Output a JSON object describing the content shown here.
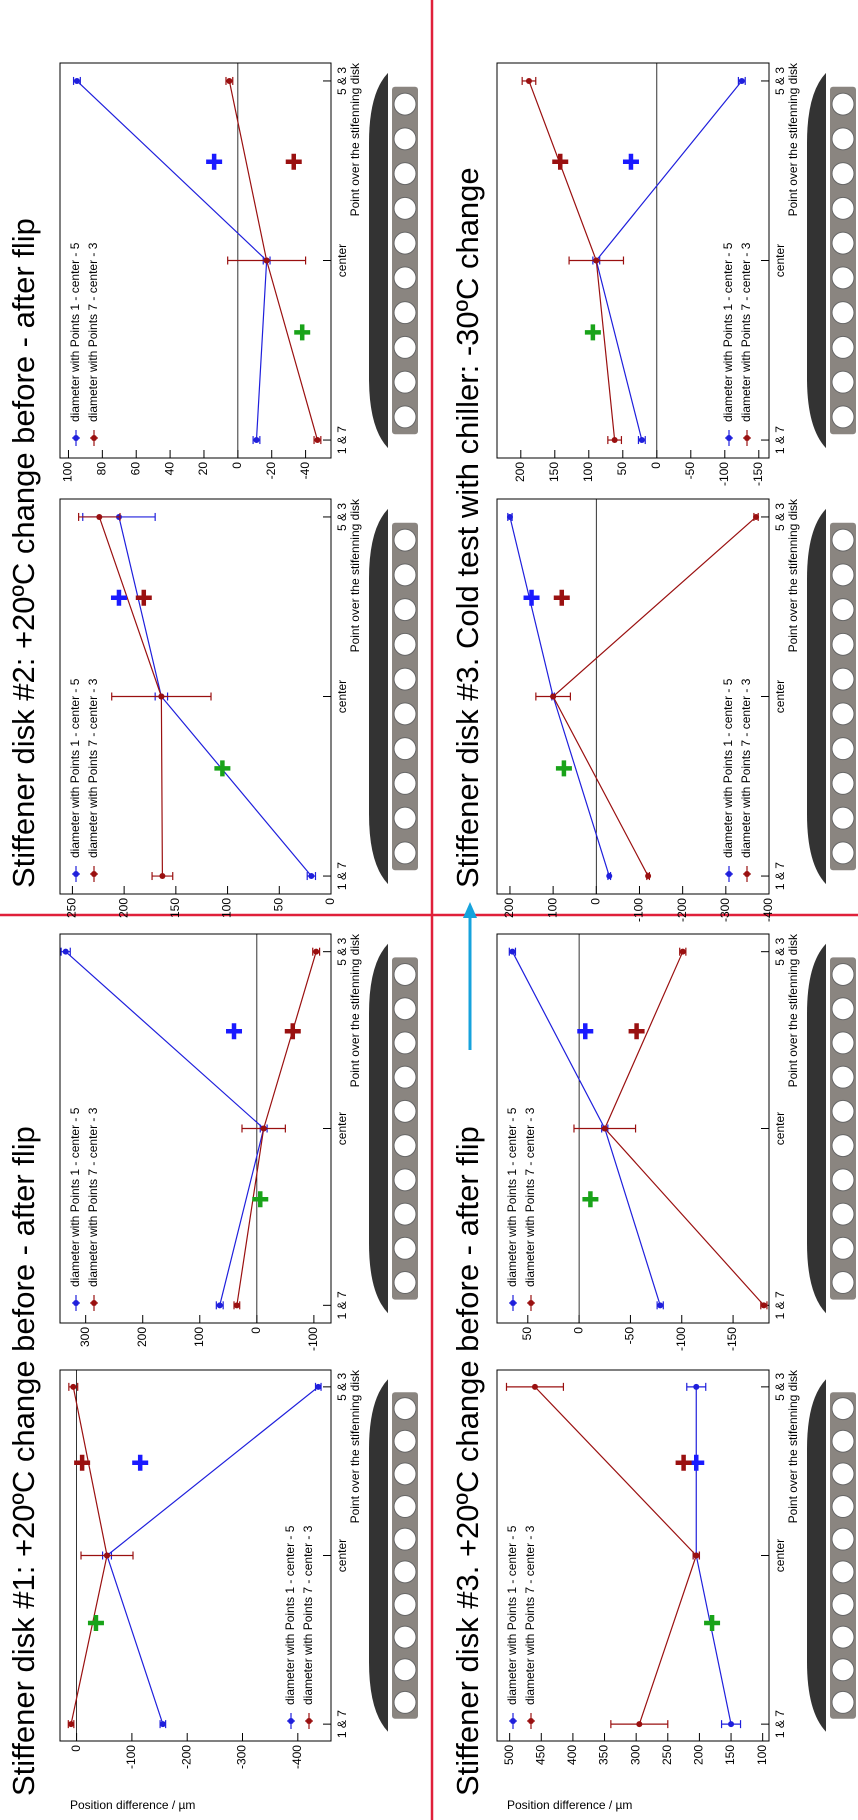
{
  "slide": {
    "sections": [
      {
        "title": "Stiffener disk #1: +20ºC change before - after flip",
        "color": "#e3173e"
      },
      {
        "title": "Stiffener disk #2: +20ºC change before - after flip",
        "color": "#e3173e"
      },
      {
        "title": "Stiffener disk #3. +20ºC change before - after flip",
        "color": "#e3173e"
      },
      {
        "title": "Stiffener disk #3. Cold test with chiller: -30ºC change",
        "color": "#16a3dd"
      }
    ]
  },
  "chart_data": [
    {
      "type": "line",
      "ylabel": "Position difference / µm",
      "xlabel": "Point over the stifenning disk",
      "x": [
        0,
        1,
        2
      ],
      "xlim": [
        -0.1,
        2.1
      ],
      "xticks": [
        {
          "value": 0,
          "label": "1 & 7"
        },
        {
          "value": 1,
          "label": "center"
        },
        {
          "value": 2,
          "label": "5 & 3"
        }
      ],
      "ylim": [
        -460,
        30
      ],
      "yticks": [
        -400,
        -300,
        -200,
        -100,
        0
      ],
      "legend": "lower left",
      "series": [
        {
          "name": "diameter with Points 1 - center - 5",
          "color": "#1f1fdc",
          "values": [
            -156,
            -55,
            -437
          ],
          "errors": [
            5,
            8,
            5
          ]
        },
        {
          "name": "diameter with Points 7 - center - 3",
          "color": "#9a1010",
          "values": [
            10,
            -55,
            6
          ],
          "errors": [
            5,
            47,
            8
          ]
        }
      ],
      "markers": [
        {
          "x": 0.6,
          "y": -35,
          "color": "#19a319"
        },
        {
          "x": 1.55,
          "y": -10,
          "color": "#9a1010"
        },
        {
          "x": 1.55,
          "y": -115,
          "color": "#1a1aff"
        }
      ]
    },
    {
      "type": "line",
      "xlabel": "Point over the stifenning disk",
      "x": [
        0,
        1,
        2
      ],
      "xlim": [
        -0.1,
        2.1
      ],
      "xticks": [
        {
          "value": 0,
          "label": "1 & 7"
        },
        {
          "value": 1,
          "label": "center"
        },
        {
          "value": 2,
          "label": "5 & 3"
        }
      ],
      "ylim": [
        -130,
        345
      ],
      "yticks": [
        -100,
        0,
        100,
        200,
        300
      ],
      "legend": "upper left",
      "series": [
        {
          "name": "diameter with Points 1 - center - 5",
          "color": "#1f1fdc",
          "values": [
            65,
            -12,
            335
          ],
          "errors": [
            6,
            6,
            8
          ]
        },
        {
          "name": "diameter with Points 7 - center - 3",
          "color": "#9a1010",
          "values": [
            35,
            -12,
            -104
          ],
          "errors": [
            5,
            38,
            6
          ]
        }
      ],
      "markers": [
        {
          "x": 0.6,
          "y": -6,
          "color": "#19a319"
        },
        {
          "x": 1.55,
          "y": 40,
          "color": "#1a1aff"
        },
        {
          "x": 1.55,
          "y": -63,
          "color": "#9a1010"
        }
      ]
    },
    {
      "type": "line",
      "xlabel": "Point over the stifenning disk",
      "x": [
        0,
        1,
        2
      ],
      "xlim": [
        -0.1,
        2.1
      ],
      "xticks": [
        {
          "value": 0,
          "label": "1 & 7"
        },
        {
          "value": 1,
          "label": "center"
        },
        {
          "value": 2,
          "label": "5 & 3"
        }
      ],
      "ylim": [
        0,
        262
      ],
      "yticks": [
        0,
        50,
        100,
        150,
        200,
        250
      ],
      "legend": "upper left",
      "series": [
        {
          "name": "diameter with Points 1 - center - 5",
          "color": "#1f1fdc",
          "values": [
            19,
            164,
            205
          ],
          "errors": [
            4,
            6,
            35
          ]
        },
        {
          "name": "diameter with Points 7 - center - 3",
          "color": "#9a1010",
          "values": [
            163,
            164,
            224
          ],
          "errors": [
            10,
            48,
            20
          ]
        }
      ],
      "markers": [
        {
          "x": 0.6,
          "y": 105,
          "color": "#19a319"
        },
        {
          "x": 1.55,
          "y": 205,
          "color": "#1a1aff"
        },
        {
          "x": 1.55,
          "y": 181,
          "color": "#9a1010"
        }
      ]
    },
    {
      "type": "line",
      "xlabel": "Point over the stifenning disk",
      "x": [
        0,
        1,
        2
      ],
      "xlim": [
        -0.1,
        2.1
      ],
      "xticks": [
        {
          "value": 0,
          "label": "1 & 7"
        },
        {
          "value": 1,
          "label": "center"
        },
        {
          "value": 2,
          "label": "5 & 3"
        }
      ],
      "ylim": [
        -55,
        105
      ],
      "yticks": [
        -40,
        -20,
        0,
        20,
        40,
        60,
        80,
        100
      ],
      "legend": "upper left",
      "series": [
        {
          "name": "diameter with Points 1 - center - 5",
          "color": "#1f1fdc",
          "values": [
            -11,
            -17,
            95
          ],
          "errors": [
            2,
            2,
            2
          ]
        },
        {
          "name": "diameter with Points 7 - center - 3",
          "color": "#9a1010",
          "values": [
            -47,
            -17,
            5
          ],
          "errors": [
            2,
            23,
            2
          ]
        }
      ],
      "markers": [
        {
          "x": 0.6,
          "y": -38,
          "color": "#19a319"
        },
        {
          "x": 1.55,
          "y": 14,
          "color": "#1a1aff"
        },
        {
          "x": 1.55,
          "y": -33,
          "color": "#9a1010"
        }
      ]
    },
    {
      "type": "line",
      "ylabel": "Position difference / µm",
      "xlabel": "Point over the stifenning disk",
      "x": [
        0,
        1,
        2
      ],
      "xlim": [
        -0.1,
        2.1
      ],
      "xticks": [
        {
          "value": 0,
          "label": "1 & 7"
        },
        {
          "value": 1,
          "label": "center"
        },
        {
          "value": 2,
          "label": "5 & 3"
        }
      ],
      "ylim": [
        90,
        520
      ],
      "yticks": [
        100,
        150,
        200,
        250,
        300,
        350,
        400,
        450,
        500
      ],
      "legend": "upper left",
      "series": [
        {
          "name": "diameter with Points 1 - center - 5",
          "color": "#1f1fdc",
          "values": [
            150,
            205,
            205
          ],
          "errors": [
            15,
            5,
            15
          ]
        },
        {
          "name": "diameter with Points 7 - center - 3",
          "color": "#9a1010",
          "values": [
            295,
            205,
            460
          ],
          "errors": [
            45,
            5,
            45
          ]
        }
      ],
      "markers": [
        {
          "x": 0.6,
          "y": 180,
          "color": "#19a319"
        },
        {
          "x": 1.55,
          "y": 205,
          "color": "#1a1aff"
        },
        {
          "x": 1.55,
          "y": 225,
          "color": "#9a1010"
        }
      ]
    },
    {
      "type": "line",
      "xlabel": "Point over the stifenning disk",
      "x": [
        0,
        1,
        2
      ],
      "xlim": [
        -0.1,
        2.1
      ],
      "xticks": [
        {
          "value": 0,
          "label": "1 & 7"
        },
        {
          "value": 1,
          "label": "center"
        },
        {
          "value": 2,
          "label": "5 & 3"
        }
      ],
      "ylim": [
        -185,
        80
      ],
      "yticks": [
        -150,
        -100,
        -50,
        0,
        50
      ],
      "legend": "upper left",
      "series": [
        {
          "name": "diameter with Points 1 - center - 5",
          "color": "#1f1fdc",
          "values": [
            -79,
            -25,
            65
          ],
          "errors": [
            3,
            3,
            3
          ]
        },
        {
          "name": "diameter with Points 7 - center - 3",
          "color": "#9a1010",
          "values": [
            -180,
            -25,
            -101
          ],
          "errors": [
            3,
            30,
            3
          ]
        }
      ],
      "markers": [
        {
          "x": 0.6,
          "y": -11,
          "color": "#19a319"
        },
        {
          "x": 1.55,
          "y": -6,
          "color": "#1a1aff"
        },
        {
          "x": 1.55,
          "y": -56,
          "color": "#9a1010"
        }
      ]
    },
    {
      "type": "line",
      "xlabel": "Point over the stifenning disk",
      "x": [
        0,
        1,
        2
      ],
      "xlim": [
        -0.1,
        2.1
      ],
      "xticks": [
        {
          "value": 0,
          "label": "1 & 7"
        },
        {
          "value": 1,
          "label": "center"
        },
        {
          "value": 2,
          "label": "5 & 3"
        }
      ],
      "ylim": [
        -400,
        230
      ],
      "yticks": [
        -400,
        -300,
        -200,
        -100,
        0,
        100,
        200
      ],
      "legend": "lower left",
      "series": [
        {
          "name": "diameter with Points 1 - center - 5",
          "color": "#1f1fdc",
          "values": [
            -30,
            100,
            200
          ],
          "errors": [
            3,
            3,
            5
          ]
        },
        {
          "name": "diameter with Points 7 - center - 3",
          "color": "#9a1010",
          "values": [
            -120,
            100,
            -370
          ],
          "errors": [
            3,
            40,
            5
          ]
        }
      ],
      "markers": [
        {
          "x": 0.6,
          "y": 75,
          "color": "#19a319"
        },
        {
          "x": 1.55,
          "y": 150,
          "color": "#1a1aff"
        },
        {
          "x": 1.55,
          "y": 80,
          "color": "#9a1010"
        }
      ]
    },
    {
      "type": "line",
      "xlabel": "Point over the stifenning disk",
      "x": [
        0,
        1,
        2
      ],
      "xlim": [
        -0.1,
        2.1
      ],
      "xticks": [
        {
          "value": 0,
          "label": "1 & 7"
        },
        {
          "value": 1,
          "label": "center"
        },
        {
          "value": 2,
          "label": "5 & 3"
        }
      ],
      "ylim": [
        -165,
        235
      ],
      "yticks": [
        -150,
        -100,
        -50,
        0,
        50,
        100,
        150,
        200
      ],
      "legend": "lower left",
      "series": [
        {
          "name": "diameter with Points 1 - center - 5",
          "color": "#1f1fdc",
          "values": [
            22,
            89,
            -125
          ],
          "errors": [
            5,
            5,
            5
          ]
        },
        {
          "name": "diameter with Points 7 - center - 3",
          "color": "#9a1010",
          "values": [
            62,
            89,
            188
          ],
          "errors": [
            10,
            40,
            10
          ]
        }
      ],
      "markers": [
        {
          "x": 0.6,
          "y": 94,
          "color": "#19a319"
        },
        {
          "x": 1.55,
          "y": 38,
          "color": "#1a1aff"
        },
        {
          "x": 1.55,
          "y": 142,
          "color": "#9a1010"
        }
      ]
    }
  ]
}
